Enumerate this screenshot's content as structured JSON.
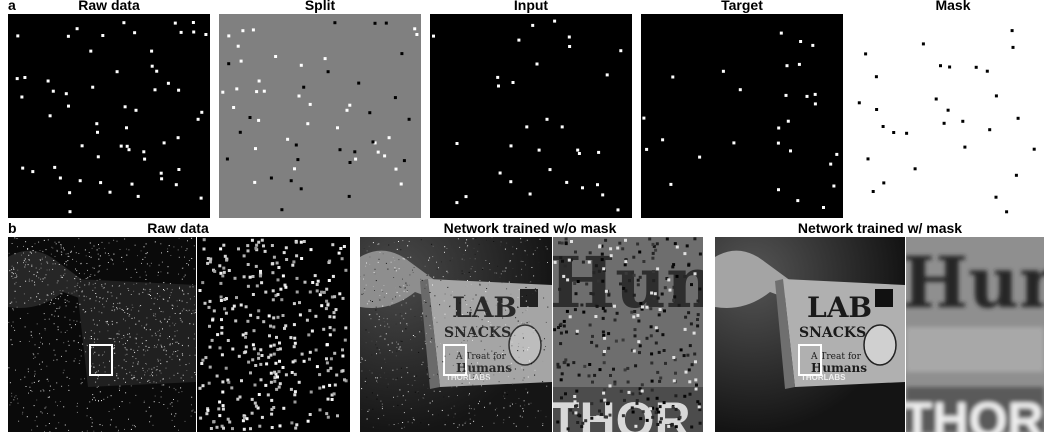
{
  "panel_a": {
    "label": "a",
    "titles": {
      "raw": "Raw data",
      "split": "Split",
      "input": "Input",
      "target": "Target",
      "mask": "Mask"
    }
  },
  "panel_b": {
    "label": "b",
    "titles": {
      "raw": "Raw data",
      "no_mask": "Network trained w/o mask",
      "with_mask": "Network trained w/ mask"
    },
    "box_text_line1": "LAB",
    "box_text_line2": "SNACKS",
    "box_text_line3": "A Treat for",
    "box_text_line4": "Humans",
    "box_brand": "THORLABS",
    "zoom_text_top": "Hun",
    "zoom_text_bottom": "THOR"
  },
  "colors": {
    "black": "#000000",
    "white": "#ffffff",
    "split_gray": "#808080",
    "box_outline": "#ffffff"
  }
}
